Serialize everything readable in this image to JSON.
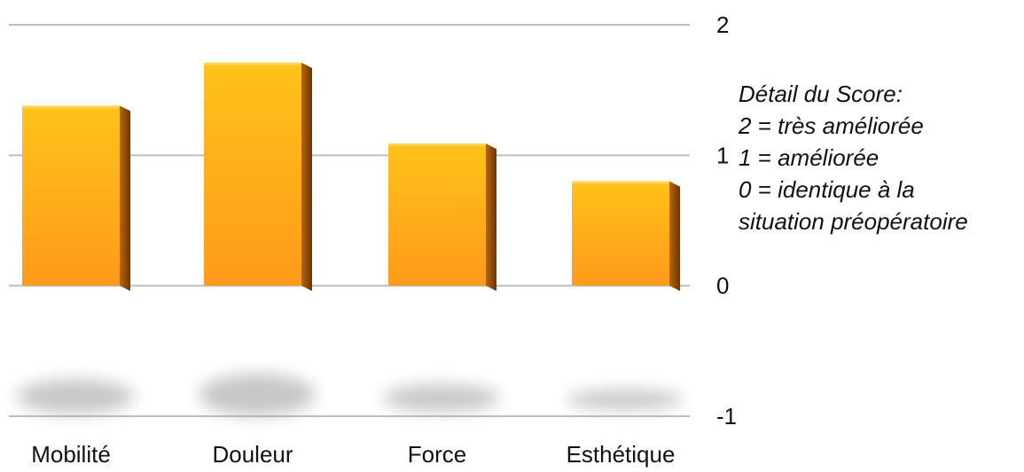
{
  "chart_data": {
    "type": "bar",
    "categories": [
      "Mobilité",
      "Douleur",
      "Force",
      "Esthétique"
    ],
    "values": [
      1.38,
      1.71,
      1.09,
      0.8
    ],
    "ylim": [
      -1,
      2
    ],
    "y_ticks": [
      "2",
      "1",
      "0",
      "-1"
    ],
    "y_tick_values": [
      2,
      1,
      0,
      -1
    ],
    "grid": true,
    "y_axis_side": "right",
    "colors": {
      "bar_front_top": "#ffc21a",
      "bar_front_bottom": "#ff9a1a",
      "bar_side": "#8a4a0c",
      "grid": "#bdbdbd"
    },
    "annotation": [
      "Détail du Score:",
      "2  = très améliorée",
      "1  = améliorée",
      "0  = identique à la",
      "situation préopératoire"
    ]
  }
}
